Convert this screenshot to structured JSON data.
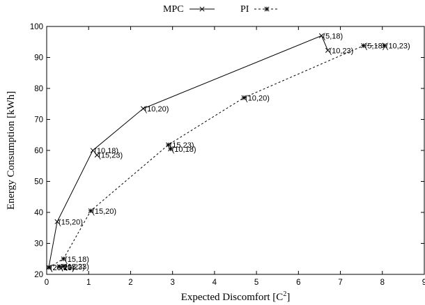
{
  "chart_data": {
    "type": "line",
    "title": "",
    "xlabel": "Expected Discomfort [C",
    "xlabel_sup": "2",
    "xlabel_end": "]",
    "ylabel": "Energy Consumption [kWh]",
    "xlim": [
      0,
      9
    ],
    "ylim": [
      20,
      100
    ],
    "xticks": [
      "0",
      "1",
      "2",
      "3",
      "4",
      "5",
      "6",
      "7",
      "8",
      "9"
    ],
    "yticks": [
      "20",
      "30",
      "40",
      "50",
      "60",
      "70",
      "80",
      "90",
      "100"
    ],
    "grid": false,
    "legend": "top-center",
    "series": [
      {
        "name": "MPC",
        "style": "solid",
        "color": "#000000",
        "points": [
          {
            "x": 0.05,
            "y": 22.3,
            "label": "(20,23)"
          },
          {
            "x": 0.25,
            "y": 37.0,
            "label": "(15,20)"
          },
          {
            "x": 1.1,
            "y": 60.0,
            "label": "(10,18)"
          },
          {
            "x": 2.3,
            "y": 73.5,
            "label": "(10,20)"
          },
          {
            "x": 6.55,
            "y": 97.0,
            "label": "(5,18)"
          },
          {
            "x": 6.7,
            "y": 92.3,
            "label": "(10,23)"
          }
        ],
        "extra_points": [
          {
            "x": 1.2,
            "y": 58.5,
            "label": "(15,23)"
          }
        ]
      },
      {
        "name": "PI",
        "style": "dashed",
        "color": "#000000",
        "points": [
          {
            "x": 0.05,
            "y": 22.2,
            "label": "(20,20)"
          },
          {
            "x": 0.4,
            "y": 25.0,
            "label": "(15,18)"
          },
          {
            "x": 1.05,
            "y": 40.5,
            "label": "(15,20)"
          },
          {
            "x": 2.9,
            "y": 61.8,
            "label": "(15,23)"
          },
          {
            "x": 4.7,
            "y": 77.0,
            "label": "(10,20)"
          },
          {
            "x": 7.55,
            "y": 93.8,
            "label": "(5,18)"
          },
          {
            "x": 8.05,
            "y": 93.8,
            "label": "(10,23)"
          }
        ],
        "extra_points": [
          {
            "x": 2.95,
            "y": 60.5,
            "label": "(10,18)"
          },
          {
            "x": 0.3,
            "y": 22.5,
            "label": "(20,23)"
          },
          {
            "x": 0.4,
            "y": 22.6,
            "label": "(18,23)"
          }
        ]
      }
    ]
  }
}
